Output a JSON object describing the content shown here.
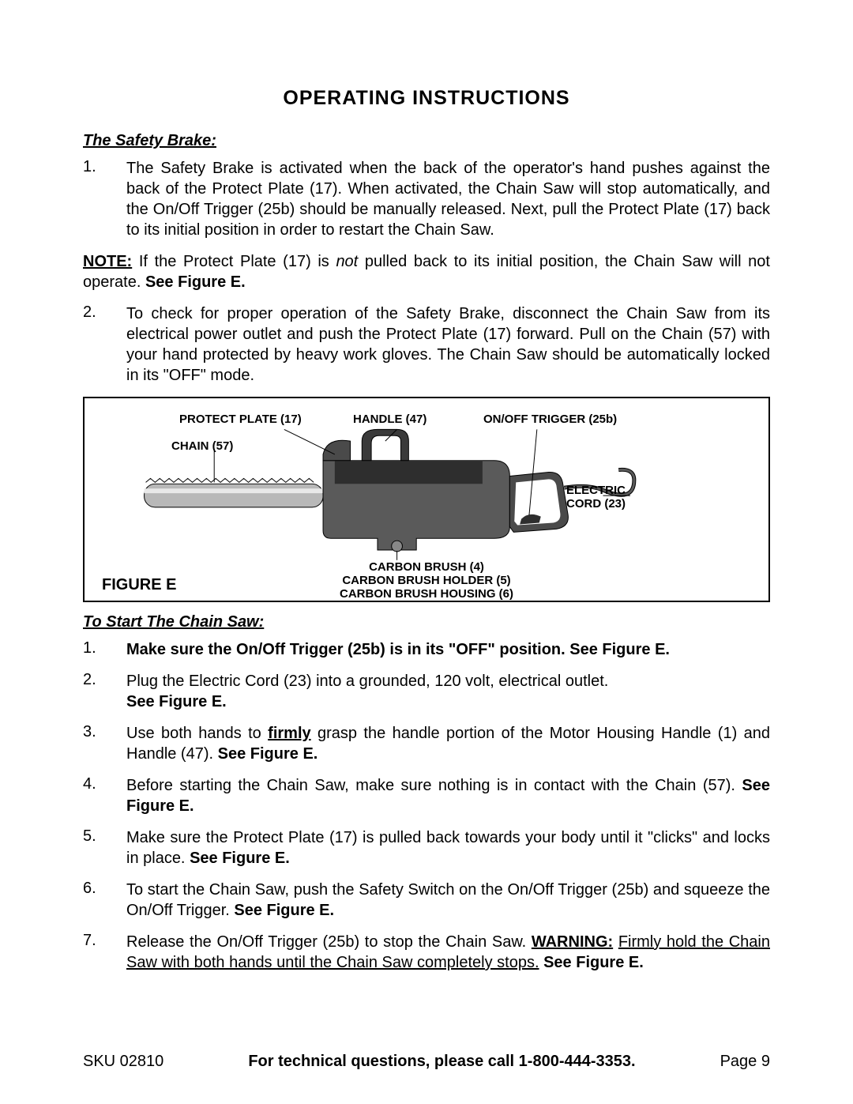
{
  "title": "OPERATING  INSTRUCTIONS",
  "safety": {
    "heading": "The Safety Brake:",
    "item1_num": "1.",
    "item1_text": "The Safety Brake is activated when the back of the operator's hand pushes against the back of the Protect Plate (17).  When activated, the Chain Saw will stop automatically, and the On/Off Trigger (25b) should be manually released.  Next, pull the Protect Plate (17) back to its initial position in order to restart the Chain Saw.",
    "note_label": "NOTE:",
    "note_pre": "  If the Protect Plate (17) is ",
    "note_not": "not",
    "note_post": " pulled back to its initial position, the Chain Saw will not operate.  ",
    "note_see": "See Figure E.",
    "item2_num": "2.",
    "item2_text": "To check for proper operation of the Safety Brake, disconnect the Chain Saw from its electrical power outlet and push the Protect Plate (17) forward.  Pull on the Chain (57) with your hand protected by heavy work gloves.  The Chain Saw should be automatically locked in its \"OFF\" mode."
  },
  "figure": {
    "caption": "FIGURE E",
    "labels": {
      "protect_plate": "PROTECT PLATE (17)",
      "handle": "HANDLE (47)",
      "trigger": "ON/OFF TRIGGER (25b)",
      "chain": "CHAIN (57)",
      "electric_cord": "ELECTRIC\nCORD (23)",
      "carbon_brush": "CARBON BRUSH (4)",
      "carbon_holder": "CARBON BRUSH HOLDER (5)",
      "carbon_housing": "CARBON BRUSH HOUSING (6)"
    },
    "colors": {
      "body": "#5a5a5a",
      "body_dark": "#2e2e2e",
      "bar": "#b8b8b8",
      "line": "#000000",
      "bg": "#ffffff"
    }
  },
  "start": {
    "heading": "To Start The Chain Saw:",
    "items": [
      {
        "num": "1.",
        "html": "<span class='bold'>Make sure the On/Off Trigger (25b) is in its \"OFF\" position.  See Figure E.</span>"
      },
      {
        "num": "2.",
        "html": "Plug the Electric Cord (23) into a grounded, 120 volt, electrical outlet.<br><span class='bold'>See Figure E.</span>"
      },
      {
        "num": "3.",
        "html": "Use both hands to <span class='bu'>firmly</span> grasp the handle portion of the Motor Housing Handle (1) and Handle (47).  <span class='bold'>See Figure E.</span>"
      },
      {
        "num": "4.",
        "html": "Before starting the Chain Saw, make sure nothing is in contact with the Chain (57).  <span class='bold'>See Figure E.</span>"
      },
      {
        "num": "5.",
        "html": "Make sure the Protect Plate (17) is pulled back towards your body until it \"clicks\" and locks in place.  <span class='bold'>See Figure E.</span>"
      },
      {
        "num": "6.",
        "html": "To start the Chain Saw, push the Safety Switch on the On/Off Trigger (25b) and squeeze the On/Off Trigger.  <span class='bold'>See Figure E.</span>"
      },
      {
        "num": "7.",
        "html": "Release the On/Off Trigger (25b) to stop the Chain Saw.  <span class='bu'>WARNING:</span> <span style='text-decoration:underline'>Firmly hold the Chain Saw with both hands until the Chain Saw completely stops.</span>  <span class='bold'>See Figure E.</span>"
      }
    ]
  },
  "footer": {
    "sku": "SKU 02810",
    "tech": "For technical questions, please call 1-800-444-3353.",
    "page": "Page 9"
  }
}
